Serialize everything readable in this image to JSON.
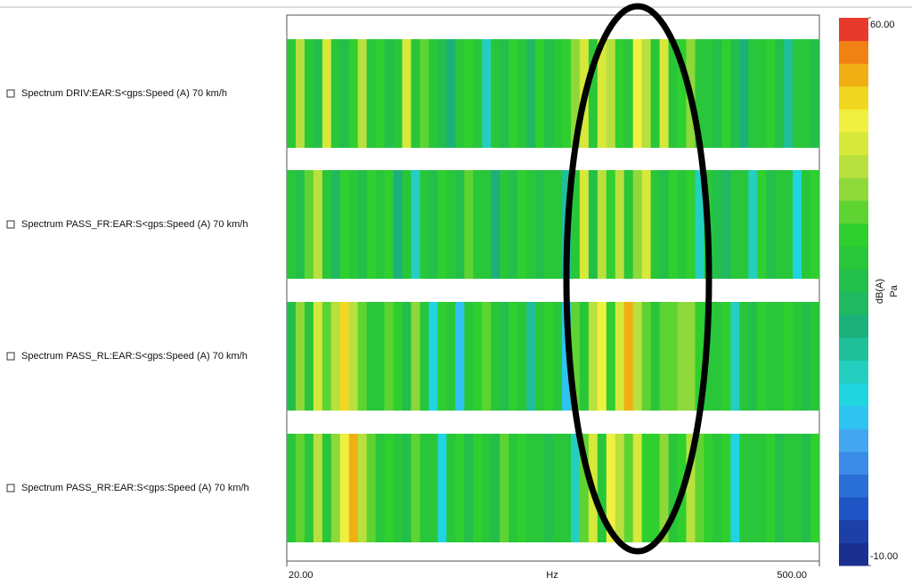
{
  "chart_data": {
    "type": "heatmap",
    "x_label": "Hz",
    "xlim": [
      20,
      500
    ],
    "log_x": true,
    "xticks": [
      {
        "value": 20,
        "label": "20.00"
      },
      {
        "value": 500,
        "label": "500.00"
      }
    ],
    "colorbar": {
      "lim": [
        -10,
        60
      ],
      "ticks": [
        {
          "value": 60,
          "label": "60.00"
        },
        {
          "value": -10,
          "label": "-10.00"
        }
      ],
      "labels": [
        "dB(A)",
        "Pa"
      ],
      "colors": [
        "#1a2f8f",
        "#1c3fa8",
        "#1f55c4",
        "#2a6fd6",
        "#3a8ce8",
        "#44a6f0",
        "#2ec3f0",
        "#20d4e0",
        "#25cfc0",
        "#1fbf9a",
        "#1cb07a",
        "#20b860",
        "#22bf4a",
        "#29c63a",
        "#2ecf2e",
        "#5ed432",
        "#8ed83a",
        "#b8e03e",
        "#d6e83a",
        "#f0f040",
        "#f0d820",
        "#f0b014",
        "#f08214",
        "#e83a2c"
      ]
    },
    "series": [
      {
        "name": "Spectrum DRIV:EAR:S<gps:Speed (A) 70 km/h",
        "values": [
          28,
          42,
          30,
          26,
          44,
          30,
          27,
          33,
          40,
          29,
          31,
          25,
          28,
          43,
          30,
          36,
          29,
          27,
          22,
          30,
          33,
          28,
          15,
          30,
          26,
          32,
          29,
          24,
          31,
          27,
          28,
          33,
          38,
          45,
          30,
          44,
          41,
          32,
          28,
          47,
          40,
          30,
          43,
          29,
          33,
          38,
          30,
          28,
          25,
          31,
          27,
          22,
          30,
          28,
          33,
          26,
          18,
          30,
          28,
          25
        ]
      },
      {
        "name": "Spectrum PASS_FR:EAR:S<gps:Speed (A) 70 km/h",
        "values": [
          30,
          26,
          35,
          42,
          28,
          24,
          32,
          30,
          27,
          31,
          29,
          33,
          22,
          28,
          14,
          30,
          27,
          31,
          29,
          26,
          34,
          28,
          30,
          20,
          29,
          27,
          31,
          30,
          25,
          28,
          30,
          18,
          29,
          44,
          27,
          42,
          31,
          40,
          29,
          38,
          43,
          30,
          26,
          32,
          29,
          31,
          16,
          28,
          27,
          24,
          30,
          29,
          16,
          31,
          27,
          30,
          28,
          13,
          29,
          31
        ]
      },
      {
        "name": "Spectrum PASS_RL:EAR:S<gps:Speed (A) 70 km/h",
        "values": [
          27,
          38,
          30,
          44,
          36,
          40,
          50,
          42,
          35,
          30,
          28,
          34,
          31,
          27,
          38,
          29,
          12,
          33,
          30,
          10,
          28,
          31,
          36,
          30,
          27,
          33,
          29,
          18,
          30,
          32,
          28,
          10,
          36,
          30,
          41,
          46,
          33,
          44,
          52,
          40,
          35,
          30,
          36,
          34,
          38,
          37,
          33,
          30,
          28,
          31,
          14,
          30,
          27,
          33,
          29,
          30,
          31,
          28,
          25,
          29
        ]
      },
      {
        "name": "Spectrum PASS_RR:EAR:S<gps:Speed (A) 70 km/h",
        "values": [
          30,
          34,
          28,
          42,
          30,
          38,
          46,
          53,
          40,
          34,
          29,
          32,
          30,
          27,
          36,
          28,
          30,
          12,
          29,
          32,
          27,
          31,
          30,
          26,
          34,
          29,
          31,
          28,
          30,
          27,
          30,
          28,
          16,
          34,
          44,
          30,
          46,
          40,
          35,
          44,
          32,
          31,
          38,
          30,
          33,
          40,
          36,
          31,
          29,
          32,
          12,
          29,
          30,
          28,
          33,
          27,
          30,
          29,
          26,
          31
        ]
      }
    ]
  }
}
